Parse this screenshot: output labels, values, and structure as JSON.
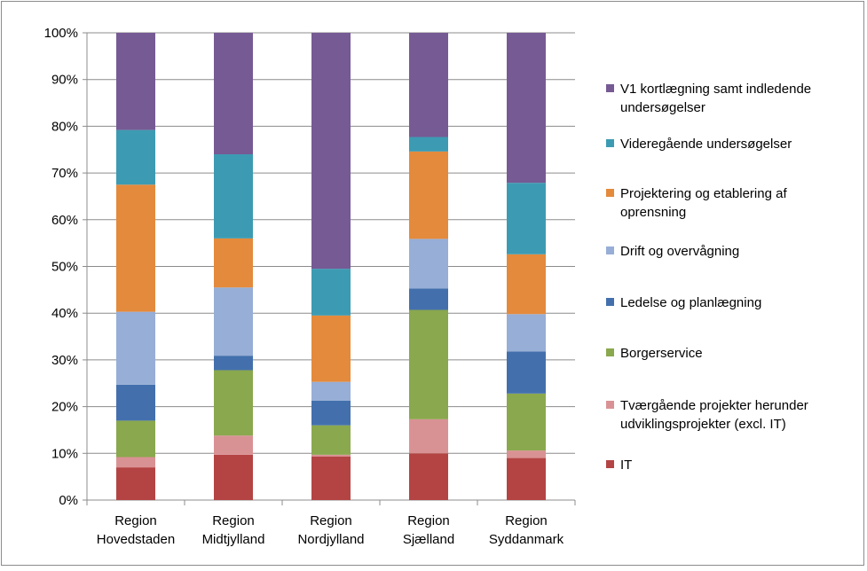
{
  "chart_data": {
    "type": "bar",
    "stacked": true,
    "percent": true,
    "title": "",
    "xlabel": "",
    "ylabel": "",
    "ylim": [
      0,
      100
    ],
    "yticks": [
      "0%",
      "10%",
      "20%",
      "30%",
      "40%",
      "50%",
      "60%",
      "70%",
      "80%",
      "90%",
      "100%"
    ],
    "grid": true,
    "legend_position": "right",
    "categories": [
      [
        "Region",
        "Hovedstaden"
      ],
      [
        "Region",
        "Midtjylland"
      ],
      [
        "Region",
        "Nordjylland"
      ],
      [
        "Region",
        "Sjælland"
      ],
      [
        "Region",
        "Syddanmark"
      ]
    ],
    "series": [
      {
        "name": "IT",
        "color": "#b44444",
        "values": [
          7.0,
          9.7,
          9.3,
          10.0,
          9.0
        ]
      },
      {
        "name": "Tværgående projekter herunder udviklingsprojekter (excl. IT)",
        "color": "#d99294",
        "values": [
          2.2,
          4.1,
          0.4,
          7.3,
          1.6
        ]
      },
      {
        "name": "Borgerservice",
        "color": "#8aa84e",
        "values": [
          7.8,
          14.0,
          6.3,
          23.4,
          12.2
        ]
      },
      {
        "name": "Ledelse og planlægning",
        "color": "#4370ad",
        "values": [
          7.7,
          3.1,
          5.3,
          4.6,
          9.0
        ]
      },
      {
        "name": "Drift og overvågning",
        "color": "#97aed6",
        "values": [
          15.6,
          14.6,
          4.0,
          10.6,
          8.0
        ]
      },
      {
        "name": "Projektering og etablering af oprensning",
        "color": "#e48a3c",
        "values": [
          27.2,
          10.5,
          14.2,
          18.7,
          12.8
        ]
      },
      {
        "name": "Videregående undersøgelser",
        "color": "#3c9bb2",
        "values": [
          11.7,
          18.0,
          10.0,
          3.1,
          15.3
        ]
      },
      {
        "name": "V1 kortlægning samt indledende undersøgelser",
        "color": "#765a94",
        "values": [
          20.8,
          26.0,
          50.5,
          22.3,
          32.1
        ]
      }
    ],
    "legend_lines": [
      [
        "V1 kortlægning samt indledende",
        "undersøgelser"
      ],
      [
        "Videregående undersøgelser"
      ],
      [
        "Projektering og etablering af",
        "oprensning"
      ],
      [
        "Drift og overvågning"
      ],
      [
        "Ledelse og planlægning"
      ],
      [
        "Borgerservice"
      ],
      [
        "Tværgående projekter herunder",
        "udviklingsprojekter (excl. IT)"
      ],
      [
        "IT"
      ]
    ]
  }
}
